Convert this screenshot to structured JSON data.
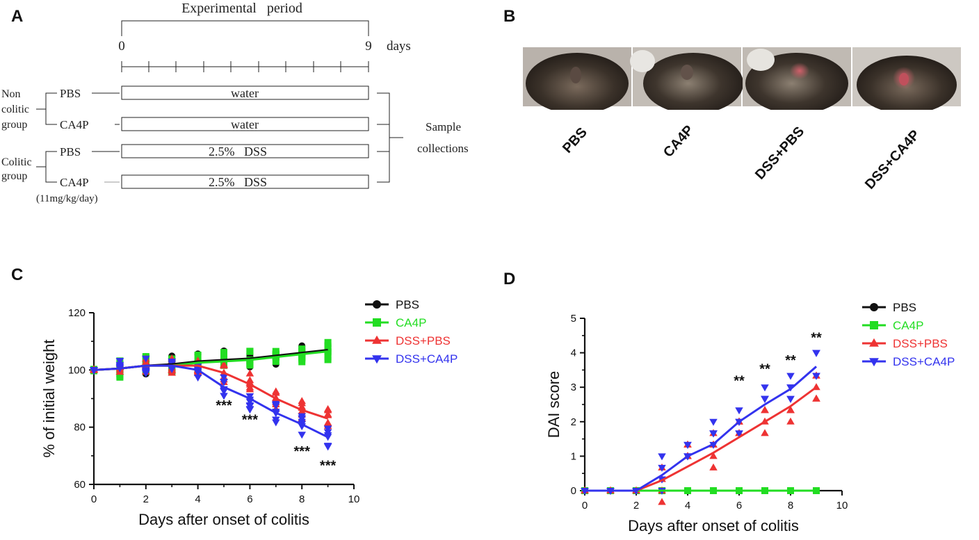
{
  "panel_labels": {
    "a": "A",
    "b": "B",
    "c": "C",
    "d": "D"
  },
  "panel_a": {
    "period_title": "Experimental   period",
    "start_day": "0",
    "end_day": "9",
    "days_unit": "days",
    "groups": [
      {
        "name": "Non\ncolitic\ngroup",
        "line1": "Non",
        "line2": "colitic",
        "line3": "group"
      },
      {
        "name": "Colitic\ngroup",
        "line1": "Colitic",
        "line2": "group"
      }
    ],
    "rows": [
      {
        "treatment": "PBS",
        "regimen": "water"
      },
      {
        "treatment": "CA4P",
        "regimen": "water"
      },
      {
        "treatment": "PBS",
        "regimen": "2.5%   DSS"
      },
      {
        "treatment": "CA4P",
        "regimen": "2.5%   DSS"
      }
    ],
    "dose_note": "(11mg/kg/day)",
    "endpoint_line1": "Sample",
    "endpoint_line2": "collections"
  },
  "panel_b": {
    "photos": [
      "PBS",
      "CA4P",
      "DSS+PBS",
      "DSS+CA4P"
    ]
  },
  "colors": {
    "PBS": "#111111",
    "CA4P": "#22dd22",
    "DSS+PBS": "#ee3333",
    "DSS+CA4P": "#3333ee"
  },
  "chart_data": [
    {
      "type": "line",
      "panel": "C",
      "xlabel": "Days after onset of colitis",
      "ylabel": "% of initial weight",
      "xlim": [
        0,
        10
      ],
      "ylim": [
        60,
        120
      ],
      "xticks": [
        "0",
        "2",
        "4",
        "6",
        "8",
        "10"
      ],
      "yticks": [
        "60",
        "80",
        "100",
        "120"
      ],
      "x": [
        0,
        1,
        2,
        3,
        4,
        5,
        6,
        7,
        8,
        9
      ],
      "series": [
        {
          "name": "PBS",
          "values": [
            100,
            100.5,
            101.5,
            102,
            103,
            103.5,
            104,
            105,
            106,
            107
          ]
        },
        {
          "name": "CA4P",
          "values": [
            100,
            100.5,
            101.5,
            101.5,
            102.5,
            103,
            103.5,
            104.5,
            105.5,
            106.5
          ]
        },
        {
          "name": "DSS+PBS",
          "values": [
            100,
            100.5,
            101.5,
            101.5,
            101.5,
            99,
            95,
            90,
            86,
            83
          ]
        },
        {
          "name": "DSS+CA4P",
          "values": [
            100,
            100.5,
            101.5,
            101.5,
            100,
            94,
            90,
            85,
            81,
            76.5
          ]
        }
      ],
      "annotations": [
        {
          "x": 5,
          "y": 86,
          "text": "***"
        },
        {
          "x": 6,
          "y": 81,
          "text": "***"
        },
        {
          "x": 8,
          "y": 70,
          "text": "***"
        },
        {
          "x": 9,
          "y": 65,
          "text": "***"
        }
      ],
      "legend": "right"
    },
    {
      "type": "line",
      "panel": "D",
      "xlabel": "Days after onset of colitis",
      "ylabel": "DAI score",
      "xlim": [
        0,
        10
      ],
      "ylim": [
        0,
        5
      ],
      "xticks": [
        "0",
        "2",
        "4",
        "6",
        "8",
        "10"
      ],
      "yticks": [
        "0",
        "1",
        "2",
        "3",
        "4",
        "5"
      ],
      "x": [
        0,
        1,
        2,
        3,
        4,
        5,
        6,
        7,
        8,
        9
      ],
      "series": [
        {
          "name": "PBS",
          "values": [
            0,
            0,
            0,
            0,
            0,
            0,
            0,
            0,
            0,
            0
          ]
        },
        {
          "name": "CA4P",
          "values": [
            0,
            0,
            0,
            0,
            0,
            0,
            0,
            0,
            0,
            0
          ]
        },
        {
          "name": "DSS+PBS",
          "values": [
            0,
            0,
            0,
            0.3,
            0.7,
            1.1,
            1.55,
            2.0,
            2.45,
            3.0
          ]
        },
        {
          "name": "DSS+CA4P",
          "values": [
            0,
            0,
            0,
            0.45,
            1.0,
            1.35,
            2.0,
            2.5,
            2.95,
            3.6
          ]
        }
      ],
      "annotations": [
        {
          "x": 6,
          "y": 3.05,
          "text": "**"
        },
        {
          "x": 7,
          "y": 3.4,
          "text": "**"
        },
        {
          "x": 8,
          "y": 3.65,
          "text": "**"
        },
        {
          "x": 9,
          "y": 4.3,
          "text": "**"
        }
      ],
      "legend": "right"
    }
  ]
}
